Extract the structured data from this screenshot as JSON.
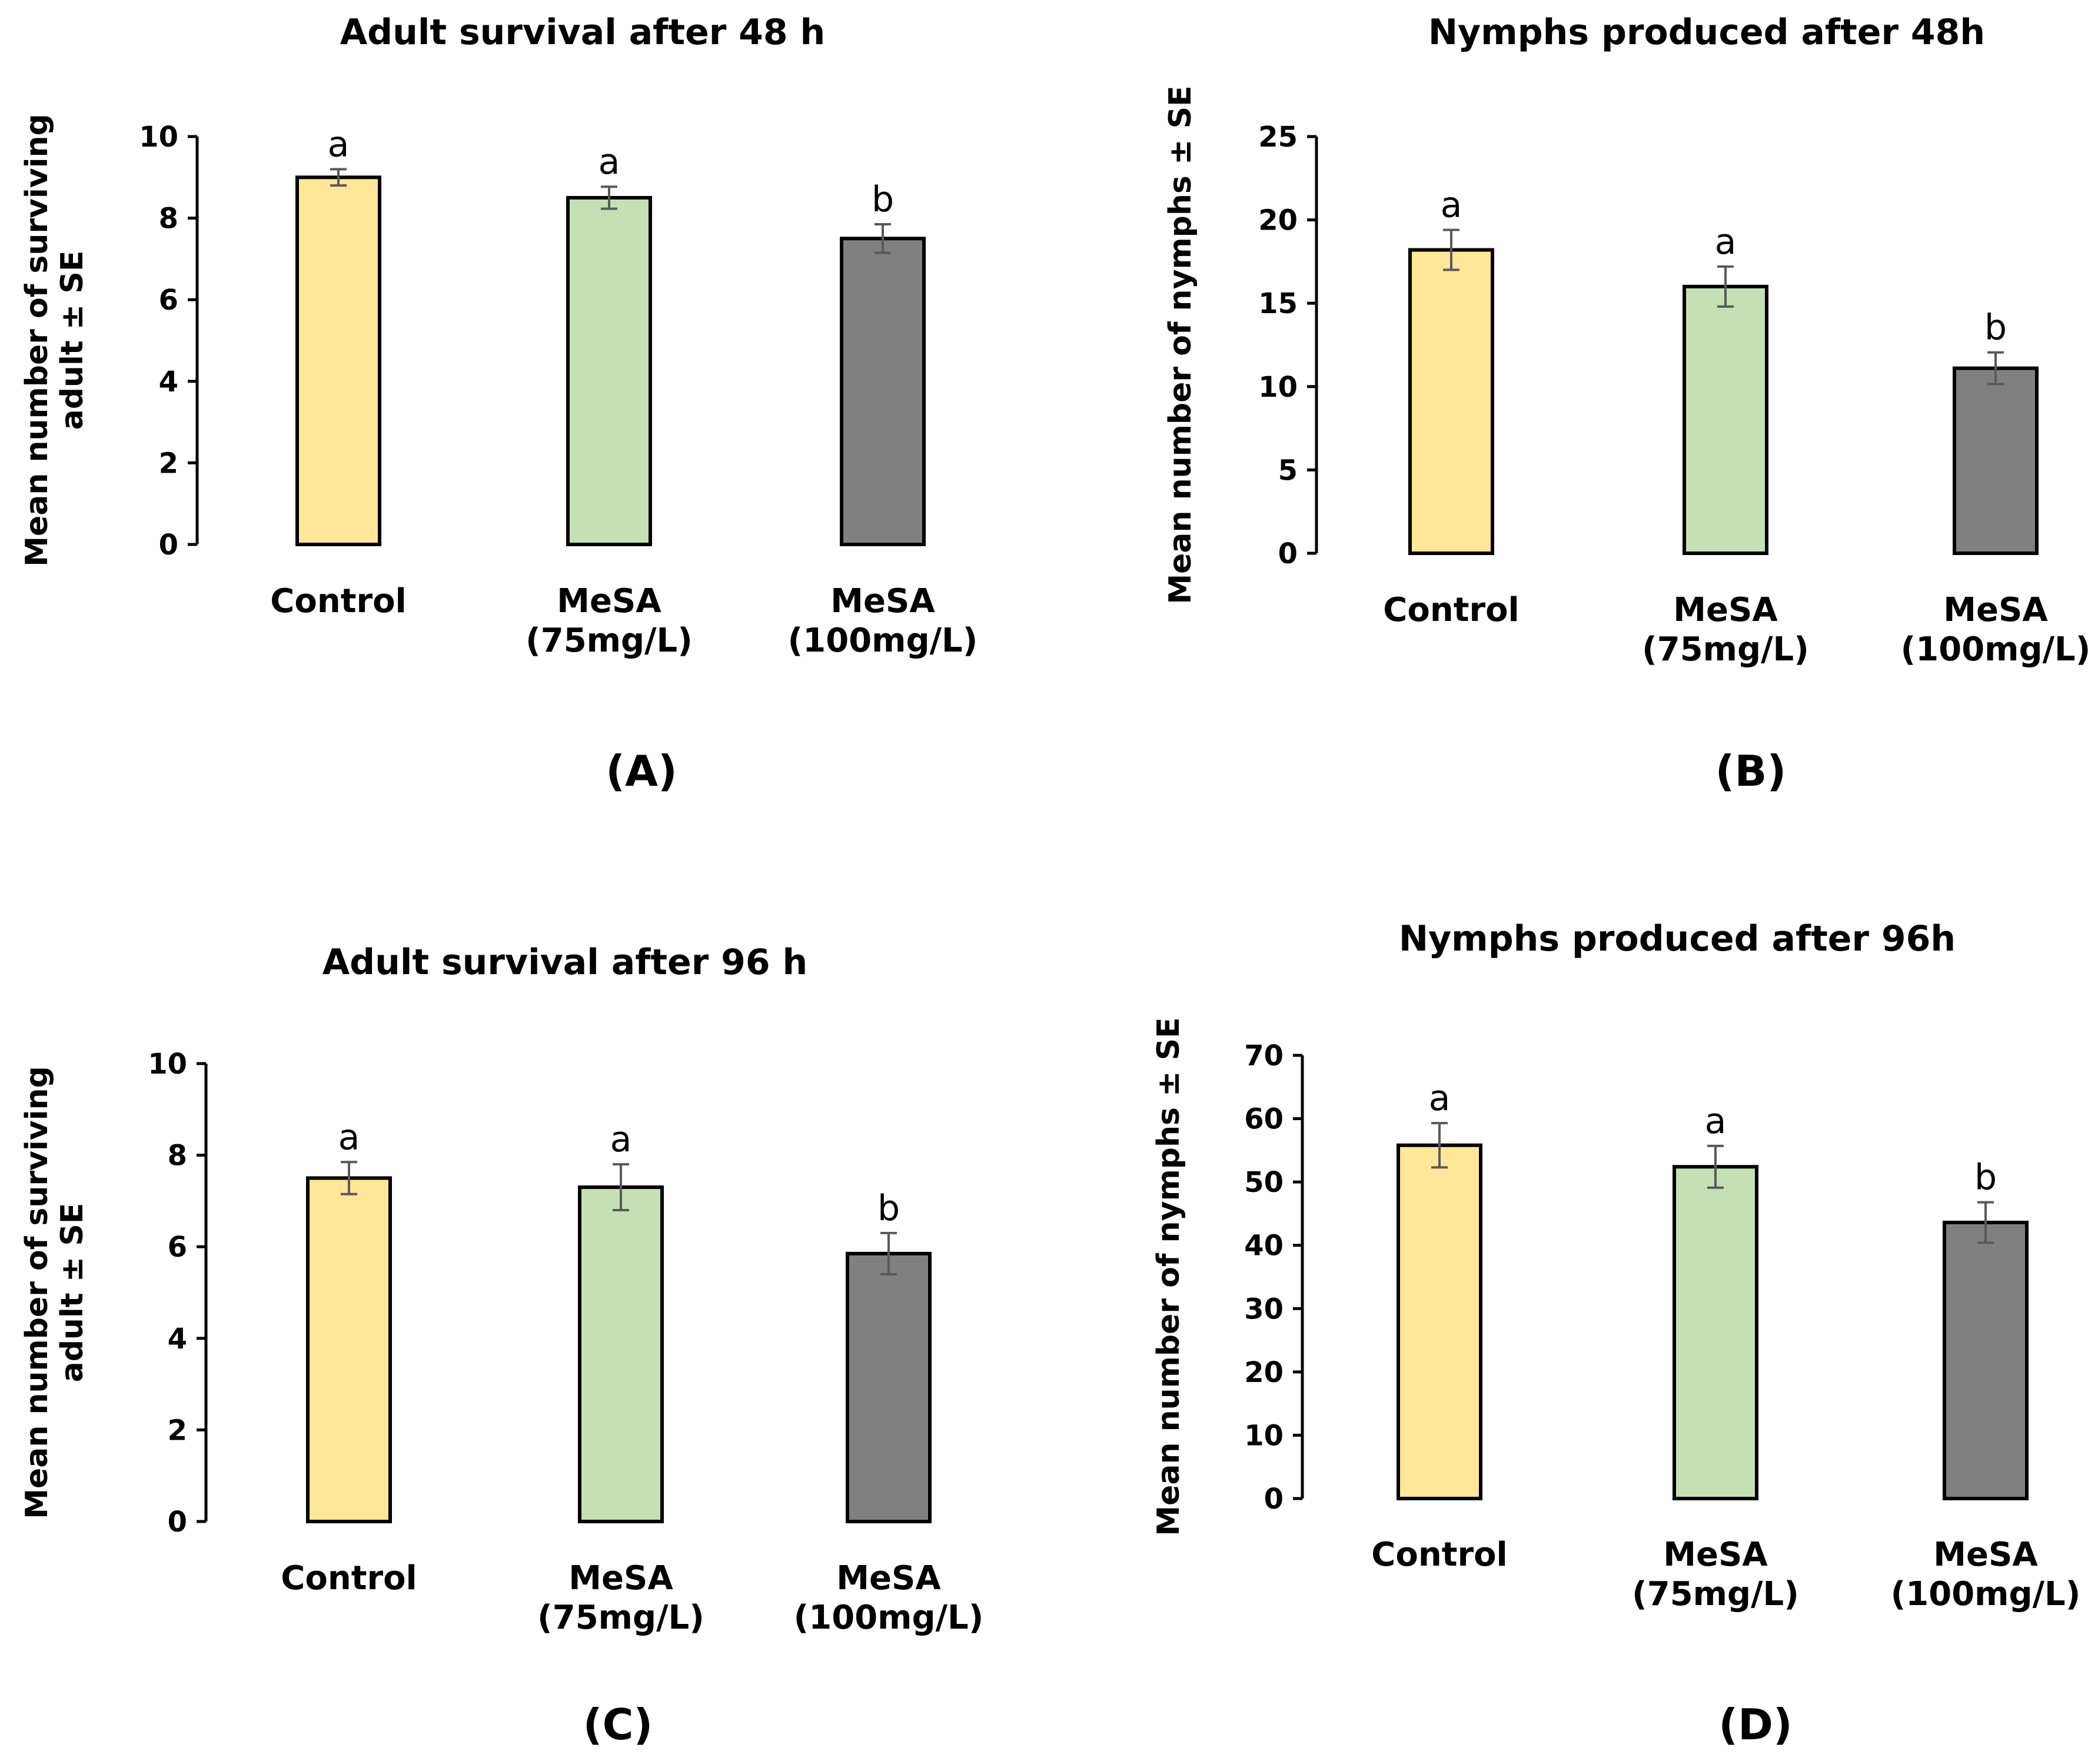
{
  "chart_data": [
    {
      "type": "bar",
      "panel": "(A)",
      "title": "Adult survival after 48 h",
      "xlabel": "",
      "ylabel": [
        "Mean number of surviving",
        "adult ± SE"
      ],
      "ylim": [
        0,
        10
      ],
      "yticks": [
        0,
        2,
        4,
        6,
        8,
        10
      ],
      "categories": [
        [
          "Control"
        ],
        [
          "MeSA",
          "(75mg/L)"
        ],
        [
          "MeSA",
          "(100mg/L)"
        ]
      ],
      "values": [
        9.0,
        8.5,
        7.5
      ],
      "errors": [
        0.2,
        0.27,
        0.35
      ],
      "significance": [
        "a",
        "a",
        "b"
      ],
      "colors": [
        "#FFE699",
        "#C5E0B4",
        "#808080"
      ]
    },
    {
      "type": "bar",
      "panel": "(B)",
      "title": "Nymphs produced after 48h",
      "xlabel": "",
      "ylabel": [
        "Mean number of nymphs ± SE"
      ],
      "ylim": [
        0,
        25
      ],
      "yticks": [
        0,
        5,
        10,
        15,
        20,
        25
      ],
      "categories": [
        [
          "Control"
        ],
        [
          "MeSA",
          "(75mg/L)"
        ],
        [
          "MeSA",
          "(100mg/L)"
        ]
      ],
      "values": [
        18.2,
        16.0,
        11.1
      ],
      "errors": [
        1.2,
        1.2,
        0.95
      ],
      "significance": [
        "a",
        "a",
        "b"
      ],
      "colors": [
        "#FFE699",
        "#C5E0B4",
        "#808080"
      ]
    },
    {
      "type": "bar",
      "panel": "(C)",
      "title": "Adult survival after 96 h",
      "xlabel": "",
      "ylabel": [
        "Mean number of surviving",
        "adult ± SE"
      ],
      "ylim": [
        0,
        10
      ],
      "yticks": [
        0,
        2,
        4,
        6,
        8,
        10
      ],
      "categories": [
        [
          "Control"
        ],
        [
          "MeSA",
          "(75mg/L)"
        ],
        [
          "MeSA",
          "(100mg/L)"
        ]
      ],
      "values": [
        7.5,
        7.3,
        5.85
      ],
      "errors": [
        0.35,
        0.5,
        0.45
      ],
      "significance": [
        "a",
        "a",
        "b"
      ],
      "colors": [
        "#FFE699",
        "#C5E0B4",
        "#808080"
      ]
    },
    {
      "type": "bar",
      "panel": "(D)",
      "title": "Nymphs produced after 96h",
      "xlabel": "",
      "ylabel": [
        "Mean number of nymphs ± SE"
      ],
      "ylim": [
        0,
        70
      ],
      "yticks": [
        0,
        10,
        20,
        30,
        40,
        50,
        60,
        70
      ],
      "categories": [
        [
          "Control"
        ],
        [
          "MeSA",
          "(75mg/L)"
        ],
        [
          "MeSA",
          "(100mg/L)"
        ]
      ],
      "values": [
        55.8,
        52.4,
        43.6
      ],
      "errors": [
        3.5,
        3.3,
        3.2
      ],
      "significance": [
        "a",
        "a",
        "b"
      ],
      "colors": [
        "#FFE699",
        "#C5E0B4",
        "#808080"
      ]
    }
  ]
}
